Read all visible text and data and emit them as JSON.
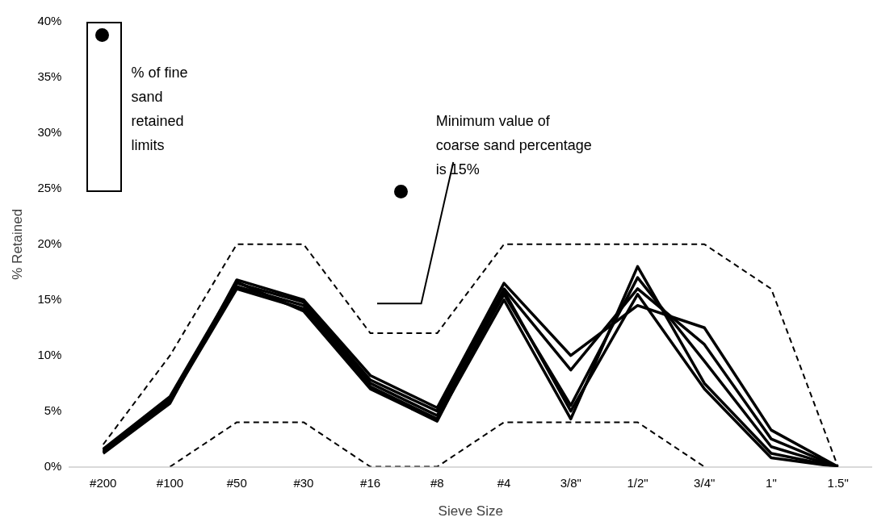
{
  "chart_data": {
    "type": "line",
    "xlabel": "Sieve Size",
    "ylabel": "% Retained",
    "categories": [
      "#200",
      "#100",
      "#50",
      "#30",
      "#16",
      "#8",
      "#4",
      "3/8\"",
      "1/2\"",
      "3/4\"",
      "1\"",
      "1.5\""
    ],
    "series": [
      {
        "color": "#000000",
        "values": [
          1.2,
          5.7,
          16.8,
          15,
          8.2,
          5.3,
          16.5,
          10,
          14.5,
          12.5,
          3.3,
          0
        ]
      },
      {
        "color": "#000000",
        "values": [
          1.4,
          6,
          16.5,
          14.8,
          7.8,
          5,
          16,
          8.7,
          16,
          11,
          2.5,
          0
        ]
      },
      {
        "color": "#000000",
        "values": [
          1.5,
          6.1,
          16.2,
          14.5,
          7.5,
          4.6,
          15.5,
          5.5,
          17,
          9.5,
          1.8,
          0
        ]
      },
      {
        "color": "#000000",
        "values": [
          1.3,
          5.9,
          16,
          14.2,
          7.2,
          4.3,
          15,
          4.3,
          18,
          7.5,
          1.2,
          0
        ]
      },
      {
        "color": "#000000",
        "values": [
          1.6,
          6.3,
          16.6,
          14,
          7,
          4.1,
          15.8,
          5,
          15.5,
          7,
          0.8,
          0
        ]
      },
      {
        "color": "#000000",
        "line_style": "dashed",
        "values": [
          2,
          10,
          20,
          20,
          12,
          12,
          20,
          20,
          20,
          20,
          16,
          0
        ]
      },
      {
        "color": "#000000",
        "line_style": "dashed",
        "values": [
          null,
          0,
          4,
          4,
          0,
          0,
          4,
          4,
          4,
          0,
          null,
          null
        ]
      }
    ],
    "ylim": [
      0,
      40
    ],
    "yticks": [
      {
        "value": 0,
        "label": "0%"
      },
      {
        "value": 5,
        "label": "5%"
      },
      {
        "value": 10,
        "label": "10%"
      },
      {
        "value": 15,
        "label": "15%"
      },
      {
        "value": 20,
        "label": "20%"
      },
      {
        "value": 25,
        "label": "25%"
      },
      {
        "value": 30,
        "label": "30%"
      },
      {
        "value": 35,
        "label": "35%"
      },
      {
        "value": 40,
        "label": "40%"
      }
    ],
    "grid": false,
    "legend": false,
    "marker": "none",
    "line_style": "solid",
    "annotations": [
      "% of fine sand retained limits",
      "Minimum value of coarse sand percentage is 15%"
    ]
  }
}
